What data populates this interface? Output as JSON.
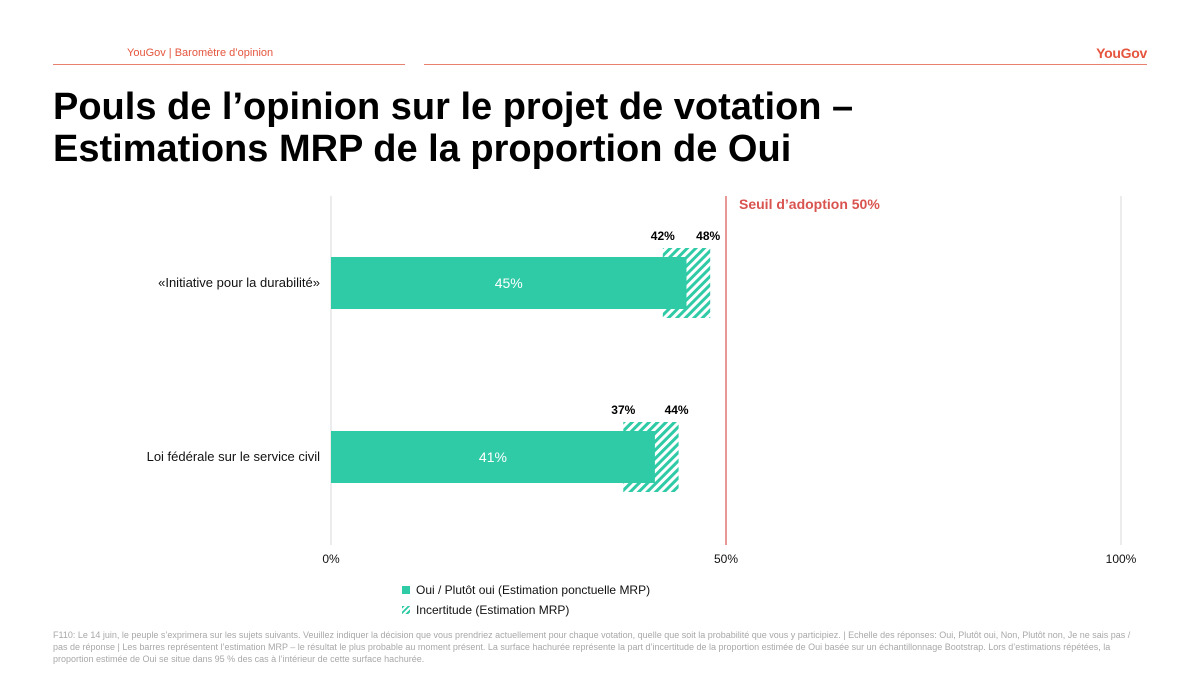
{
  "header": {
    "source_label": "YouGov | Baromètre d’opinion",
    "logo_text": "YouGov"
  },
  "title": {
    "line1": "Pouls de l’opinion sur le projet de votation –",
    "line2": "Estimations MRP de la proportion de Oui"
  },
  "colors": {
    "accent": "#e5553e",
    "bar": "#2fcaa6",
    "threshold": "#d9534f"
  },
  "chart_data": {
    "type": "bar",
    "orientation": "horizontal",
    "categories": [
      "«Initiative pour la durabilité»",
      "Loi fédérale sur le service civil"
    ],
    "values": [
      45,
      41
    ],
    "uncertainty_low": [
      42,
      37
    ],
    "uncertainty_high": [
      48,
      44
    ],
    "value_labels": [
      "45%",
      "41%"
    ],
    "low_labels": [
      "42%",
      "37%"
    ],
    "high_labels": [
      "48%",
      "44%"
    ],
    "xlim": [
      0,
      100
    ],
    "x_ticks": [
      0,
      50,
      100
    ],
    "x_tick_labels": [
      "0%",
      "50%",
      "100%"
    ],
    "threshold": 50,
    "threshold_label": "Seuil d’adoption 50%",
    "grid": false
  },
  "legend": {
    "items": [
      {
        "label": "Oui / Plutôt oui (Estimation ponctuelle MRP)",
        "icon": "solid-square-icon"
      },
      {
        "label": "Incertitude (Estimation MRP)",
        "icon": "hatched-square-icon"
      }
    ]
  },
  "footnote": "F110: Le 14 juin, le peuple s’exprimera sur les sujets suivants. Veuillez indiquer la décision que vous prendriez actuellement pour chaque votation, quelle que soit la probabilité que vous y participiez. | Echelle des réponses: Oui, Plutôt oui, Non, Plutôt non, Je ne sais pas / pas de réponse | Les barres représentent l’estimation MRP – le résultat le plus probable au moment présent. La surface hachurée représente la part d’incertitude de la proportion estimée de Oui basée sur un échantillonnage Bootstrap. Lors d’estimations répétées, la proportion estimée de Oui se situe dans 95 % des cas à l’intérieur de cette surface hachurée."
}
